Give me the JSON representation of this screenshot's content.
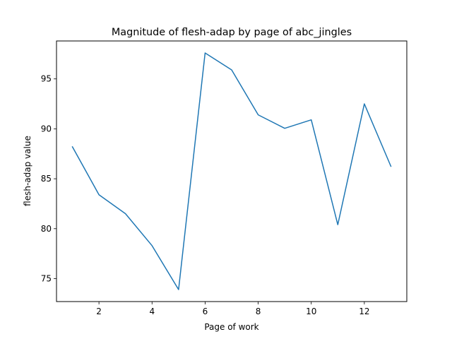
{
  "chart_data": {
    "type": "line",
    "title": "Magnitude of flesh-adap by page of abc_jingles",
    "xlabel": "Page of work",
    "ylabel": "flesh-adap value",
    "x": [
      1,
      2,
      3,
      4,
      5,
      6,
      7,
      8,
      9,
      10,
      11,
      12,
      13
    ],
    "series": [
      {
        "values": [
          88.2,
          83.4,
          81.5,
          78.3,
          73.9,
          97.6,
          95.9,
          91.4,
          90.05,
          90.9,
          80.4,
          92.5,
          86.25
        ]
      }
    ],
    "xlim": [
      0.4,
      13.6
    ],
    "ylim": [
      72.7,
      98.8
    ],
    "xticks": [
      2,
      4,
      6,
      8,
      10,
      12
    ],
    "yticks": [
      75,
      80,
      85,
      90,
      95
    ],
    "grid": false,
    "line_color": "#1f77b4"
  }
}
